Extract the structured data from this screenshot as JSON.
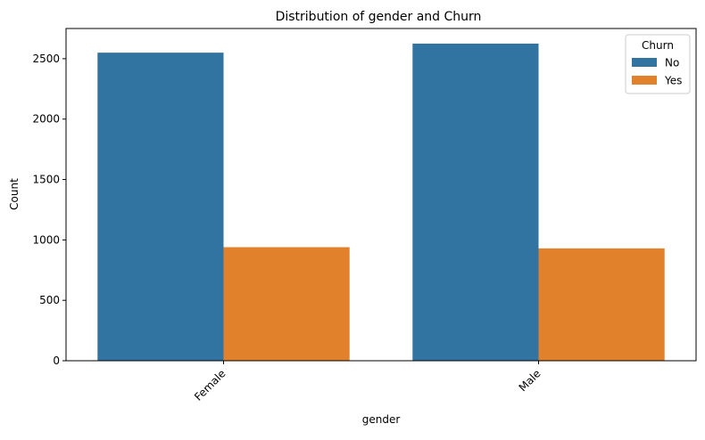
{
  "chart_data": {
    "type": "bar",
    "title": "Distribution of gender and Churn",
    "xlabel": "gender",
    "ylabel": "Count",
    "categories": [
      "Female",
      "Male"
    ],
    "series": [
      {
        "name": "No",
        "color": "#3274a1",
        "values": [
          2550,
          2625
        ]
      },
      {
        "name": "Yes",
        "color": "#e1812c",
        "values": [
          940,
          930
        ]
      }
    ],
    "ylim": [
      0,
      2750
    ],
    "yticks": [
      0,
      500,
      1000,
      1500,
      2000,
      2500
    ],
    "legend": {
      "title": "Churn",
      "placement": "top-right"
    },
    "grid": false,
    "xtick_rotation_deg": 45
  }
}
